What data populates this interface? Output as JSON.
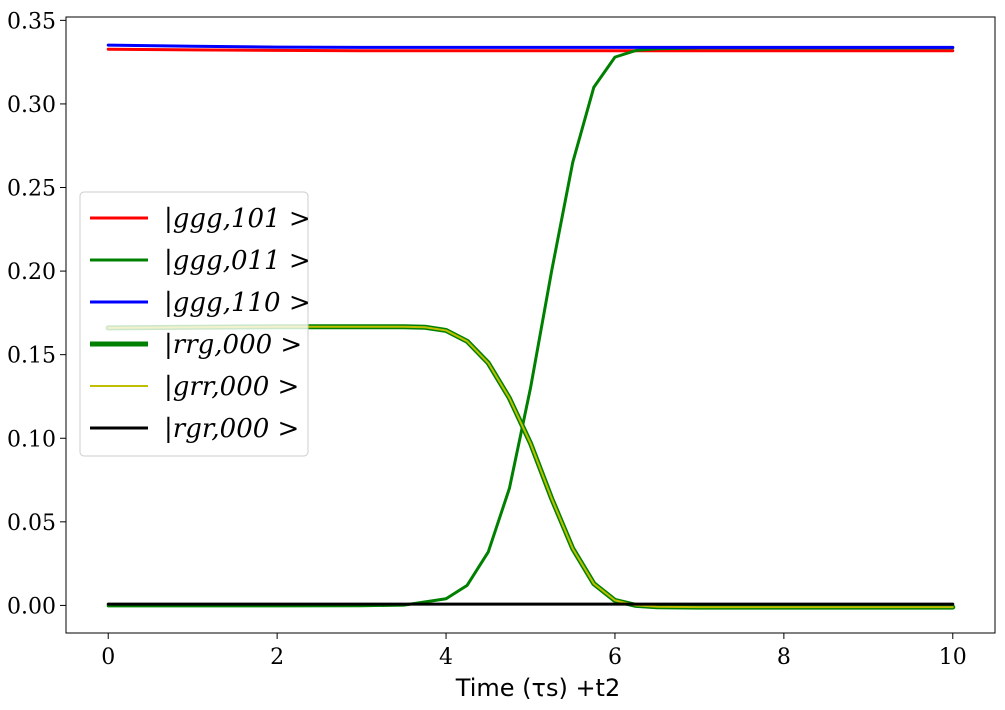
{
  "chart_data": {
    "type": "line",
    "title": "",
    "xlabel": "Time (τs) +t2",
    "ylabel": "",
    "xlim": [
      -0.5,
      10.5
    ],
    "ylim": [
      -0.0165,
      0.352
    ],
    "xticks": [
      0,
      2,
      4,
      6,
      8,
      10
    ],
    "yticks": [
      0.0,
      0.05,
      0.1,
      0.15,
      0.2,
      0.25,
      0.3,
      0.35
    ],
    "xtick_labels": [
      "0",
      "2",
      "4",
      "6",
      "8",
      "10"
    ],
    "ytick_labels": [
      "0.00",
      "0.05",
      "0.10",
      "0.15",
      "0.20",
      "0.25",
      "0.30",
      "0.35"
    ],
    "grid": false,
    "legend_position": "center-left",
    "series": [
      {
        "name": "|ggg,101 >",
        "color": "#ff0000",
        "width": 3,
        "x": [
          0,
          1,
          2,
          3,
          4,
          5,
          6,
          7,
          8,
          9,
          10
        ],
        "y": [
          0.3327,
          0.3323,
          0.332,
          0.3318,
          0.3318,
          0.3318,
          0.3318,
          0.3318,
          0.3318,
          0.3318,
          0.3318
        ]
      },
      {
        "name": "|ggg,011 >",
        "color": "#008000",
        "width": 3,
        "x": [
          0,
          1,
          2,
          3,
          3.5,
          4,
          4.25,
          4.5,
          4.75,
          5,
          5.25,
          5.5,
          5.75,
          6,
          6.25,
          6.5,
          7,
          8,
          9,
          10
        ],
        "y": [
          -0.0003,
          -0.0003,
          -0.0003,
          -0.0002,
          0.0002,
          0.004,
          0.012,
          0.032,
          0.07,
          0.13,
          0.2,
          0.265,
          0.31,
          0.328,
          0.332,
          0.333,
          0.3335,
          0.3335,
          0.3335,
          0.3335
        ]
      },
      {
        "name": "|ggg,110 >",
        "color": "#0000ff",
        "width": 3,
        "x": [
          0,
          1,
          2,
          3,
          4,
          5,
          6,
          7,
          8,
          9,
          10
        ],
        "y": [
          0.3352,
          0.3345,
          0.334,
          0.3338,
          0.3338,
          0.3338,
          0.3338,
          0.3338,
          0.3338,
          0.3338,
          0.3338
        ]
      },
      {
        "name": "|rrg,000 >",
        "color": "#008000",
        "width": 5,
        "x": [
          0,
          1,
          2,
          3,
          3.5,
          3.75,
          4,
          4.25,
          4.5,
          4.75,
          5,
          5.25,
          5.5,
          5.75,
          6,
          6.25,
          6.5,
          7,
          8,
          9,
          10
        ],
        "y": [
          0.166,
          0.1664,
          0.1667,
          0.1667,
          0.1667,
          0.1664,
          0.1645,
          0.158,
          0.145,
          0.124,
          0.097,
          0.064,
          0.034,
          0.013,
          0.003,
          0.0,
          -0.0008,
          -0.001,
          -0.001,
          -0.001,
          -0.001
        ]
      },
      {
        "name": "|grr,000 >",
        "color": "#bfbf00",
        "width": 2,
        "x": [
          0,
          1,
          2,
          3,
          3.5,
          3.75,
          4,
          4.25,
          4.5,
          4.75,
          5,
          5.25,
          5.5,
          5.75,
          6,
          6.25,
          6.5,
          7,
          8,
          9,
          10
        ],
        "y": [
          0.166,
          0.1664,
          0.1667,
          0.1667,
          0.1667,
          0.1664,
          0.1645,
          0.158,
          0.145,
          0.124,
          0.097,
          0.064,
          0.034,
          0.013,
          0.003,
          0.0,
          -0.0008,
          -0.001,
          -0.001,
          -0.001,
          -0.001
        ]
      },
      {
        "name": "|rgr,000 >",
        "color": "#000000",
        "width": 3,
        "x": [
          0,
          2,
          4,
          6,
          8,
          10
        ],
        "y": [
          0.0008,
          0.0008,
          0.0008,
          0.0008,
          0.0008,
          0.0008
        ]
      }
    ]
  }
}
